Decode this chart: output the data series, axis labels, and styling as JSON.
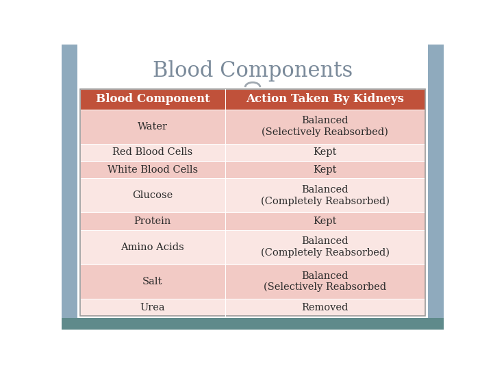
{
  "title": "Blood Components",
  "title_fontsize": 22,
  "title_color": "#7a8a9a",
  "header": [
    "Blood Component",
    "Action Taken By Kidneys"
  ],
  "header_bg": "#c0513a",
  "header_text_color": "#ffffff",
  "header_fontsize": 12,
  "rows": [
    [
      "Water",
      "Balanced\n(Selectively Reabsorbed)"
    ],
    [
      "Red Blood Cells",
      "Kept"
    ],
    [
      "White Blood Cells",
      "Kept"
    ],
    [
      "Glucose",
      "Balanced\n(Completely Reabsorbed)"
    ],
    [
      "Protein",
      "Kept"
    ],
    [
      "Amino Acids",
      "Balanced\n(Completely Reabsorbed)"
    ],
    [
      "Salt",
      "Balanced\n(Selectively Reabsorbed"
    ],
    [
      "Urea",
      "Removed"
    ]
  ],
  "row_colors": [
    "#f2cac5",
    "#fae6e3",
    "#f2cac5",
    "#fae6e3",
    "#f2cac5",
    "#fae6e3",
    "#f2cac5",
    "#fae6e3"
  ],
  "row_text_color": "#2b2b2b",
  "row_fontsize": 10.5,
  "outer_bg": "#8faabd",
  "white_bg": "#ffffff",
  "side_strip_color": "#8faabd",
  "bottom_strip_color": "#5f8a8b",
  "table_edge_color": "#999999"
}
